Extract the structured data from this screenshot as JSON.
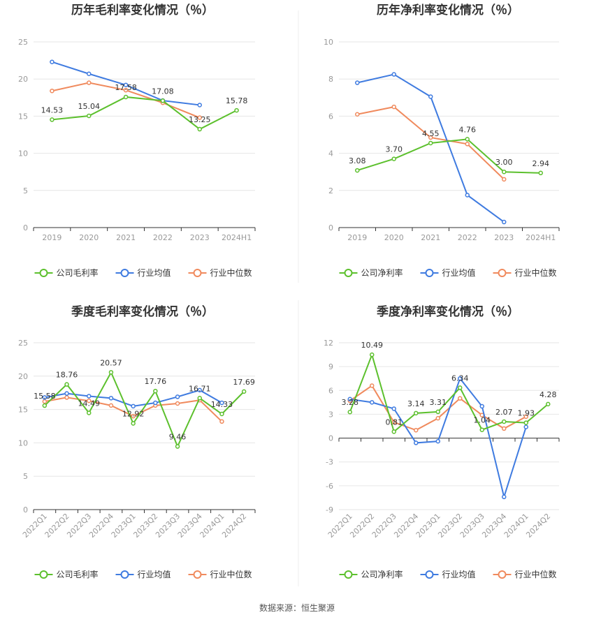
{
  "source": "数据来源：恒生聚源",
  "colors": {
    "company": "#5cc02d",
    "avg": "#3f7be0",
    "median": "#f08a5d"
  },
  "chart_data": [
    {
      "type": "line",
      "title": "历年毛利率变化情况（％）",
      "categories": [
        "2019",
        "2020",
        "2021",
        "2022",
        "2023",
        "2024H1"
      ],
      "ylim": [
        0,
        25
      ],
      "yticks": [
        0,
        5,
        10,
        15,
        20,
        25
      ],
      "grid": true,
      "legend": "bottom",
      "series": [
        {
          "name": "公司毛利率",
          "key": "company",
          "labeled": true,
          "values": [
            14.53,
            15.04,
            17.58,
            17.08,
            13.25,
            15.78
          ]
        },
        {
          "name": "行业均值",
          "key": "avg",
          "values": [
            22.3,
            20.7,
            19.2,
            17.1,
            16.5,
            null
          ]
        },
        {
          "name": "行业中位数",
          "key": "median",
          "values": [
            18.4,
            19.5,
            18.5,
            16.8,
            14.8,
            null
          ]
        }
      ]
    },
    {
      "type": "line",
      "title": "历年净利率变化情况（％）",
      "categories": [
        "2019",
        "2020",
        "2021",
        "2022",
        "2023",
        "2024H1"
      ],
      "ylim": [
        0,
        10
      ],
      "yticks": [
        0,
        2,
        4,
        6,
        8,
        10
      ],
      "grid": true,
      "legend": "bottom",
      "series": [
        {
          "name": "公司净利率",
          "key": "company",
          "labeled": true,
          "values": [
            3.08,
            3.7,
            4.55,
            4.76,
            3.0,
            2.94
          ]
        },
        {
          "name": "行业均值",
          "key": "avg",
          "values": [
            7.8,
            8.25,
            7.05,
            1.75,
            0.3,
            null
          ]
        },
        {
          "name": "行业中位数",
          "key": "median",
          "values": [
            6.1,
            6.5,
            4.85,
            4.5,
            2.6,
            null
          ]
        }
      ]
    },
    {
      "type": "line",
      "title": "季度毛利率变化情况（％）",
      "categories": [
        "2022Q1",
        "2022Q2",
        "2022Q3",
        "2022Q4",
        "2023Q1",
        "2023Q2",
        "2023Q3",
        "2023Q4",
        "2024Q1",
        "2024Q2"
      ],
      "ylim": [
        0,
        25
      ],
      "yticks": [
        0,
        5,
        10,
        15,
        20,
        25
      ],
      "rotated_ticks": true,
      "grid": true,
      "legend": "bottom",
      "series": [
        {
          "name": "公司毛利率",
          "key": "company",
          "labeled": true,
          "values": [
            15.58,
            18.76,
            14.49,
            20.57,
            12.92,
            17.76,
            9.46,
            16.71,
            14.33,
            17.69
          ]
        },
        {
          "name": "行业均值",
          "key": "avg",
          "values": [
            16.8,
            17.4,
            17.0,
            16.7,
            15.5,
            16.0,
            16.9,
            17.9,
            16.0,
            null
          ]
        },
        {
          "name": "行业中位数",
          "key": "median",
          "values": [
            16.2,
            16.8,
            16.3,
            15.6,
            14.0,
            15.6,
            15.9,
            16.4,
            13.2,
            null
          ]
        }
      ]
    },
    {
      "type": "line",
      "title": "季度净利率变化情况（％）",
      "categories": [
        "2022Q1",
        "2022Q2",
        "2022Q3",
        "2022Q4",
        "2023Q1",
        "2023Q2",
        "2023Q3",
        "2023Q4",
        "2024Q1",
        "2024Q2"
      ],
      "ylim": [
        -9,
        12
      ],
      "yticks": [
        -9,
        -6,
        -3,
        0,
        3,
        6,
        9,
        12
      ],
      "rotated_ticks": true,
      "grid": true,
      "legend": "bottom",
      "series": [
        {
          "name": "公司净利率",
          "key": "company",
          "labeled": true,
          "values": [
            3.28,
            10.49,
            0.81,
            3.14,
            3.31,
            6.34,
            1.04,
            2.07,
            1.93,
            4.28
          ]
        },
        {
          "name": "行业均值",
          "key": "avg",
          "values": [
            4.9,
            4.5,
            3.7,
            -0.6,
            -0.4,
            7.5,
            4.0,
            -7.4,
            1.4,
            null
          ]
        },
        {
          "name": "行业中位数",
          "key": "median",
          "values": [
            4.7,
            6.6,
            2.0,
            1.0,
            2.5,
            5.0,
            2.9,
            1.2,
            2.7,
            null
          ]
        }
      ]
    }
  ]
}
